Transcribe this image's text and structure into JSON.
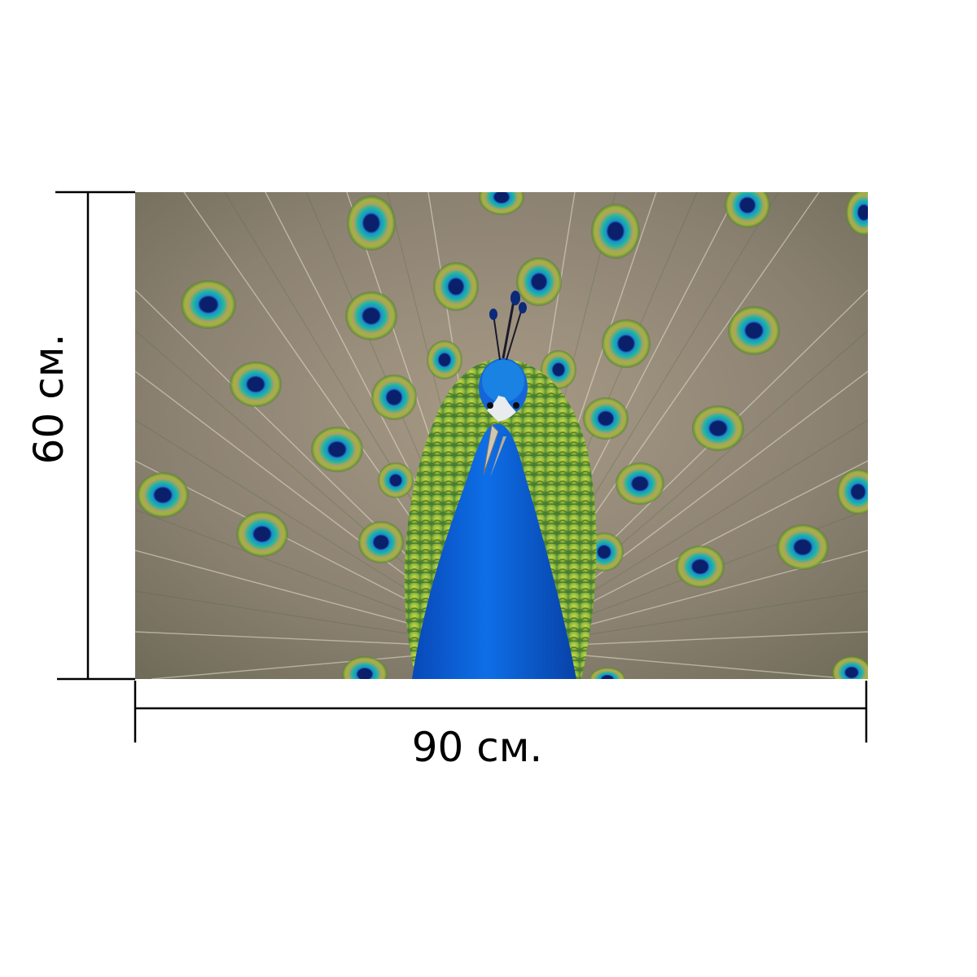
{
  "dimensions": {
    "width_label": "90 см.",
    "height_label": "60 см."
  },
  "colors": {
    "neck_blue": "#0a5fd8",
    "feather_green": "#9bc23a",
    "eye_teal": "#1fb8a0",
    "eye_center": "#0b1f6b",
    "feather_bg": "#8f8474",
    "dimension_line": "#000000"
  },
  "image": {
    "subject": "peacock-with-spread-tail"
  }
}
